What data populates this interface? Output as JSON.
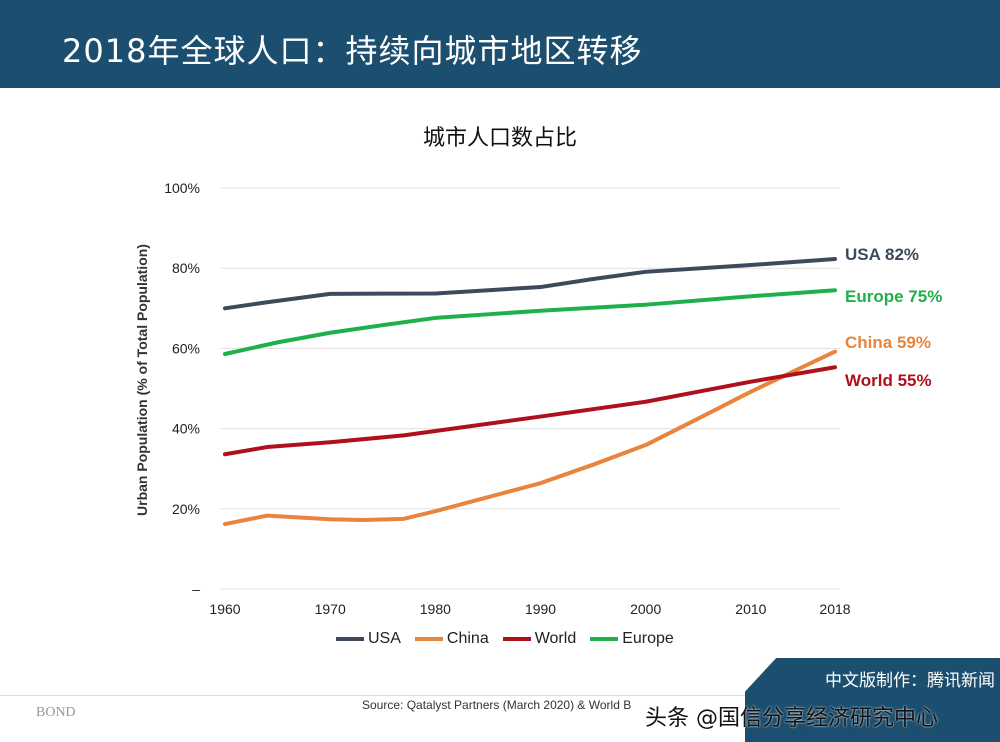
{
  "header": {
    "title": "2018年全球人口：持续向城市地区转移"
  },
  "chart_data": {
    "type": "line",
    "title": "城市人口数占比",
    "ylabel": "Urban Population (% of Total Population)",
    "xlabel": "",
    "xlim": [
      1960,
      2018
    ],
    "ylim": [
      0,
      100
    ],
    "x_ticks": [
      "1960",
      "1970",
      "1980",
      "1990",
      "2000",
      "2010",
      "2018"
    ],
    "y_ticks": [
      "–",
      "20%",
      "40%",
      "60%",
      "80%",
      "100%"
    ],
    "grid": true,
    "legend": "bottom",
    "series": [
      {
        "name": "USA",
        "color": "#3d4a5c",
        "end_label": "USA 82%",
        "x": [
          1960,
          1964,
          1970,
          1980,
          1990,
          1995,
          2000,
          2010,
          2018
        ],
        "y": [
          70,
          71.5,
          73.6,
          73.7,
          75.3,
          77.3,
          79.1,
          80.8,
          82.3
        ]
      },
      {
        "name": "China",
        "color": "#e8843c",
        "end_label": "China 59%",
        "x": [
          1960,
          1964,
          1970,
          1973,
          1977,
          1980,
          1985,
          1990,
          1995,
          2000,
          2005,
          2010,
          2018
        ],
        "y": [
          16.2,
          18.3,
          17.4,
          17.2,
          17.5,
          19.4,
          22.9,
          26.4,
          31,
          35.9,
          42.5,
          49.2,
          59.2
        ]
      },
      {
        "name": "World",
        "color": "#b0101c",
        "end_label": "World 55%",
        "x": [
          1960,
          1964,
          1970,
          1977,
          1980,
          1990,
          2000,
          2005,
          2010,
          2018
        ],
        "y": [
          33.6,
          35.4,
          36.6,
          38.3,
          39.4,
          43,
          46.7,
          49.2,
          51.7,
          55.3
        ]
      },
      {
        "name": "Europe",
        "color": "#1fb04c",
        "end_label": "Europe 75%",
        "x": [
          1960,
          1965,
          1970,
          1975,
          1980,
          1985,
          1990,
          2000,
          2010,
          2018
        ],
        "y": [
          58.6,
          61.5,
          63.9,
          65.8,
          67.6,
          68.5,
          69.4,
          70.9,
          73,
          74.5
        ]
      }
    ]
  },
  "footer": {
    "source": "Source: Qatalyst Partners (March 2020) & World B",
    "logo": "BOND",
    "badge": "中文版制作：腾讯新闻",
    "watermark": "头条 @国信分享经济研究中心"
  }
}
